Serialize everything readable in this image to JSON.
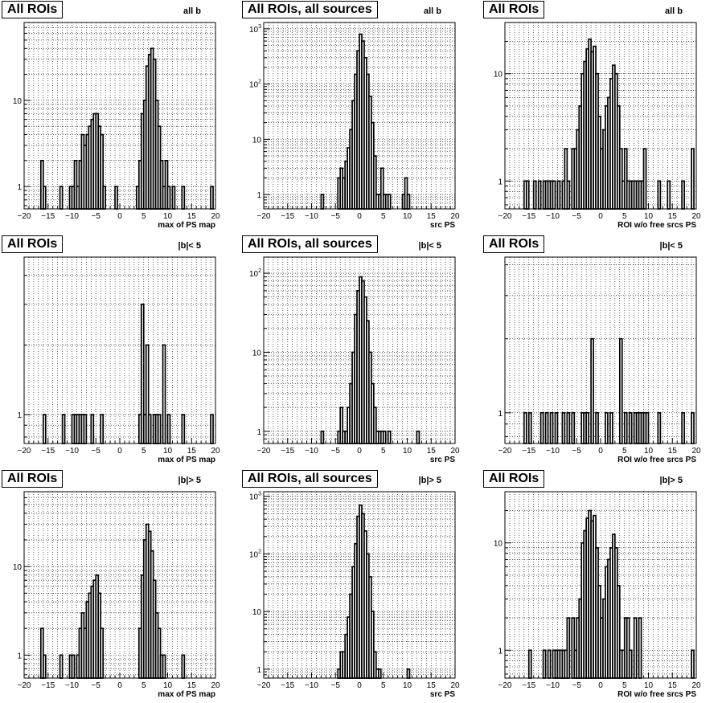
{
  "chart_data": [
    {
      "type": "bar",
      "title": "All ROIs",
      "subtitle": "all b",
      "xlabel": "max of PS map",
      "xlim": [
        -20,
        20
      ],
      "y_scale": "log",
      "ylim": [
        0.55,
        80
      ],
      "yticks": [
        1,
        10
      ],
      "xticks": [
        -20,
        -15,
        -10,
        -5,
        0,
        5,
        10,
        15,
        20
      ],
      "grid": true,
      "legend": "none",
      "points": [
        [
          -16,
          1
        ],
        [
          -16.5,
          2
        ],
        [
          -12.5,
          1
        ],
        [
          -10.5,
          1
        ],
        [
          -10,
          1
        ],
        [
          -9.5,
          2
        ],
        [
          -9,
          1
        ],
        [
          -8.5,
          2
        ],
        [
          -8,
          4
        ],
        [
          -7.5,
          3
        ],
        [
          -7,
          4
        ],
        [
          -6.5,
          5
        ],
        [
          -6,
          6
        ],
        [
          -5.5,
          7
        ],
        [
          -5,
          7
        ],
        [
          -4.5,
          5
        ],
        [
          -4,
          4
        ],
        [
          -3.5,
          1
        ],
        [
          -1,
          1
        ],
        [
          3.5,
          1
        ],
        [
          4,
          2
        ],
        [
          4.5,
          7
        ],
        [
          5,
          10
        ],
        [
          5.5,
          25
        ],
        [
          6,
          34
        ],
        [
          6.5,
          40
        ],
        [
          7,
          30
        ],
        [
          7.5,
          10
        ],
        [
          8,
          5
        ],
        [
          8.5,
          2
        ],
        [
          9,
          1
        ],
        [
          9.5,
          2
        ],
        [
          10,
          1
        ],
        [
          11,
          1
        ],
        [
          13,
          1
        ],
        [
          19,
          1
        ]
      ]
    },
    {
      "type": "bar",
      "title": "All ROIs, all sources",
      "subtitle": "all b",
      "xlabel": "src PS",
      "xlim": [
        -20,
        20
      ],
      "y_scale": "log",
      "ylim": [
        0.55,
        1300
      ],
      "yticks": [
        1,
        10,
        100,
        1000
      ],
      "xticks": [
        -20,
        -15,
        -10,
        -5,
        0,
        5,
        10,
        15,
        20
      ],
      "grid": true,
      "legend": "none",
      "points": [
        [
          -8,
          1
        ],
        [
          -4.5,
          2
        ],
        [
          -4,
          3
        ],
        [
          -3.5,
          2
        ],
        [
          -3,
          4
        ],
        [
          -2.5,
          7
        ],
        [
          -2,
          15
        ],
        [
          -1.5,
          50
        ],
        [
          -1,
          150
        ],
        [
          -0.5,
          400
        ],
        [
          0,
          800
        ],
        [
          0.5,
          600
        ],
        [
          1,
          300
        ],
        [
          1.5,
          150
        ],
        [
          2,
          60
        ],
        [
          2.5,
          20
        ],
        [
          3,
          5
        ],
        [
          3.5,
          1
        ],
        [
          4,
          1
        ],
        [
          4.5,
          3
        ],
        [
          5,
          1
        ],
        [
          5.5,
          1
        ],
        [
          6,
          1
        ],
        [
          9,
          1
        ],
        [
          9.5,
          2
        ],
        [
          10,
          1
        ]
      ]
    },
    {
      "type": "bar",
      "title": "All ROIs",
      "subtitle": "all b",
      "xlabel": "ROI w/o free srcs PS",
      "xlim": [
        -20,
        20
      ],
      "y_scale": "log",
      "ylim": [
        0.55,
        30
      ],
      "yticks": [
        1,
        10
      ],
      "xticks": [
        -20,
        -15,
        -10,
        -5,
        0,
        5,
        10,
        15,
        20
      ],
      "grid": true,
      "legend": "none",
      "points": [
        [
          -16,
          1
        ],
        [
          -15.5,
          1
        ],
        [
          -14,
          1
        ],
        [
          -13,
          1
        ],
        [
          -12,
          1
        ],
        [
          -11.5,
          1
        ],
        [
          -11,
          1
        ],
        [
          -10.5,
          1
        ],
        [
          -10,
          1
        ],
        [
          -9,
          1
        ],
        [
          -8,
          1
        ],
        [
          -7.5,
          2
        ],
        [
          -7,
          1
        ],
        [
          -6,
          2
        ],
        [
          -5.5,
          2
        ],
        [
          -5,
          3
        ],
        [
          -4.5,
          5
        ],
        [
          -4,
          10
        ],
        [
          -3.5,
          13
        ],
        [
          -3,
          17
        ],
        [
          -2.5,
          21
        ],
        [
          -2,
          16
        ],
        [
          -1.5,
          18
        ],
        [
          -1,
          10
        ],
        [
          -0.5,
          4
        ],
        [
          0,
          2
        ],
        [
          0.5,
          3
        ],
        [
          1,
          5
        ],
        [
          1.5,
          6
        ],
        [
          2,
          9
        ],
        [
          2.5,
          12
        ],
        [
          3,
          10
        ],
        [
          3.5,
          5
        ],
        [
          4,
          2
        ],
        [
          4.5,
          1
        ],
        [
          5,
          2
        ],
        [
          5.5,
          1
        ],
        [
          6,
          1
        ],
        [
          6.5,
          1
        ],
        [
          7,
          1
        ],
        [
          7.5,
          1
        ],
        [
          8,
          1
        ],
        [
          8.5,
          1
        ],
        [
          9,
          2
        ],
        [
          12,
          1
        ],
        [
          14,
          1
        ],
        [
          17,
          1
        ],
        [
          19,
          2
        ]
      ]
    },
    {
      "type": "bar",
      "title": "All ROIs",
      "subtitle": "|b|< 5",
      "xlabel": "max of PS map",
      "xlim": [
        -20,
        20
      ],
      "y_scale": "log",
      "ylim": [
        0.75,
        4.8
      ],
      "yticks": [
        1
      ],
      "xticks": [
        -20,
        -15,
        -10,
        -5,
        0,
        5,
        10,
        15,
        20
      ],
      "grid": true,
      "legend": "none",
      "points": [
        [
          -16,
          1
        ],
        [
          -12,
          1
        ],
        [
          -10,
          1
        ],
        [
          -9.5,
          1
        ],
        [
          -9,
          1
        ],
        [
          -8.5,
          1
        ],
        [
          -8,
          1
        ],
        [
          -7.5,
          1
        ],
        [
          -6,
          1
        ],
        [
          -4,
          1
        ],
        [
          4,
          1
        ],
        [
          4.5,
          3
        ],
        [
          5,
          1
        ],
        [
          5.5,
          2
        ],
        [
          6,
          1
        ],
        [
          7,
          1
        ],
        [
          7.5,
          1
        ],
        [
          8,
          1
        ],
        [
          9,
          2
        ],
        [
          10,
          1
        ],
        [
          13,
          1
        ],
        [
          19,
          1
        ]
      ]
    },
    {
      "type": "bar",
      "title": "All ROIs, all sources",
      "subtitle": "|b|< 5",
      "xlabel": "src PS",
      "xlim": [
        -20,
        20
      ],
      "y_scale": "log",
      "ylim": [
        0.7,
        160
      ],
      "yticks": [
        1,
        10,
        100
      ],
      "xticks": [
        -20,
        -15,
        -10,
        -5,
        0,
        5,
        10,
        15,
        20
      ],
      "grid": true,
      "legend": "none",
      "points": [
        [
          -8,
          1
        ],
        [
          -4.5,
          1
        ],
        [
          -4,
          2
        ],
        [
          -3.5,
          1
        ],
        [
          -3,
          1
        ],
        [
          -2.5,
          2
        ],
        [
          -2,
          4
        ],
        [
          -1.5,
          10
        ],
        [
          -1,
          30
        ],
        [
          -0.5,
          60
        ],
        [
          0,
          90
        ],
        [
          0.5,
          80
        ],
        [
          1,
          50
        ],
        [
          1.5,
          25
        ],
        [
          2,
          10
        ],
        [
          2.5,
          4
        ],
        [
          3,
          2
        ],
        [
          3.5,
          1
        ],
        [
          4,
          1
        ],
        [
          4.5,
          1
        ],
        [
          5,
          1
        ],
        [
          6,
          1
        ],
        [
          12,
          1
        ]
      ]
    },
    {
      "type": "bar",
      "title": "All ROIs",
      "subtitle": "|b|< 5",
      "xlabel": "ROI w/o free srcs PS",
      "xlim": [
        -20,
        20
      ],
      "y_scale": "log",
      "ylim": [
        0.75,
        4.3
      ],
      "yticks": [
        1
      ],
      "xticks": [
        -20,
        -15,
        -10,
        -5,
        0,
        5,
        10,
        15,
        20
      ],
      "grid": true,
      "legend": "none",
      "points": [
        [
          -16,
          1
        ],
        [
          -15,
          1
        ],
        [
          -12.5,
          1
        ],
        [
          -11.5,
          1
        ],
        [
          -10.5,
          1
        ],
        [
          -9.5,
          1
        ],
        [
          -8,
          1
        ],
        [
          -7,
          1
        ],
        [
          -6,
          1
        ],
        [
          -4,
          1
        ],
        [
          -3.5,
          1
        ],
        [
          -3,
          1
        ],
        [
          -2,
          2
        ],
        [
          -1,
          1
        ],
        [
          1,
          1
        ],
        [
          2,
          1
        ],
        [
          4,
          2
        ],
        [
          5,
          1
        ],
        [
          6,
          1
        ],
        [
          7,
          1
        ],
        [
          7.5,
          1
        ],
        [
          8,
          1
        ],
        [
          8.5,
          1
        ],
        [
          9,
          1
        ],
        [
          9.5,
          1
        ],
        [
          12,
          1
        ],
        [
          17,
          1
        ],
        [
          19,
          1
        ]
      ]
    },
    {
      "type": "bar",
      "title": "All ROIs",
      "subtitle": "|b|> 5",
      "xlabel": "max of PS map",
      "xlim": [
        -20,
        20
      ],
      "y_scale": "log",
      "ylim": [
        0.55,
        70
      ],
      "yticks": [
        1,
        10
      ],
      "xticks": [
        -20,
        -15,
        -10,
        -5,
        0,
        5,
        10,
        15,
        20
      ],
      "grid": true,
      "legend": "none",
      "points": [
        [
          -16,
          1
        ],
        [
          -16.5,
          2
        ],
        [
          -12.5,
          1
        ],
        [
          -10.5,
          1
        ],
        [
          -10,
          1
        ],
        [
          -9,
          1
        ],
        [
          -8.5,
          2
        ],
        [
          -8,
          3
        ],
        [
          -7.5,
          2
        ],
        [
          -7,
          4
        ],
        [
          -6.5,
          5
        ],
        [
          -6,
          6
        ],
        [
          -5.5,
          7
        ],
        [
          -5,
          8
        ],
        [
          -4.5,
          5
        ],
        [
          -4,
          2
        ],
        [
          4,
          2
        ],
        [
          4.5,
          8
        ],
        [
          5,
          20
        ],
        [
          5.5,
          30
        ],
        [
          6,
          25
        ],
        [
          6.5,
          15
        ],
        [
          7,
          7
        ],
        [
          7.5,
          3
        ],
        [
          8,
          2
        ],
        [
          8.5,
          1
        ],
        [
          9,
          1
        ],
        [
          13,
          1
        ]
      ]
    },
    {
      "type": "bar",
      "title": "All ROIs, all sources",
      "subtitle": "|b|> 5",
      "xlabel": "src PS",
      "xlim": [
        -20,
        20
      ],
      "y_scale": "log",
      "ylim": [
        0.7,
        1200
      ],
      "yticks": [
        1,
        10,
        100,
        1000
      ],
      "xticks": [
        -20,
        -15,
        -10,
        -5,
        0,
        5,
        10,
        15,
        20
      ],
      "grid": true,
      "legend": "none",
      "points": [
        [
          -4.5,
          1
        ],
        [
          -4,
          2
        ],
        [
          -3.5,
          2
        ],
        [
          -3,
          4
        ],
        [
          -2.5,
          8
        ],
        [
          -2,
          20
        ],
        [
          -1.5,
          60
        ],
        [
          -1,
          150
        ],
        [
          -0.5,
          450
        ],
        [
          0,
          700
        ],
        [
          0.5,
          500
        ],
        [
          1,
          250
        ],
        [
          1.5,
          100
        ],
        [
          2,
          40
        ],
        [
          2.5,
          10
        ],
        [
          3,
          2
        ],
        [
          3.5,
          1
        ],
        [
          4,
          1
        ],
        [
          10,
          1
        ]
      ]
    },
    {
      "type": "bar",
      "title": "All ROIs",
      "subtitle": "|b|> 5",
      "xlabel": "ROI w/o free srcs PS",
      "xlim": [
        -20,
        20
      ],
      "y_scale": "log",
      "ylim": [
        0.55,
        30
      ],
      "yticks": [
        1,
        10
      ],
      "xticks": [
        -20,
        -15,
        -10,
        -5,
        0,
        5,
        10,
        15,
        20
      ],
      "grid": true,
      "legend": "none",
      "points": [
        [
          -15,
          1
        ],
        [
          -12,
          1
        ],
        [
          -11,
          1
        ],
        [
          -10,
          1
        ],
        [
          -9.5,
          1
        ],
        [
          -9,
          1
        ],
        [
          -8.5,
          1
        ],
        [
          -8,
          1
        ],
        [
          -7.5,
          1
        ],
        [
          -7,
          2
        ],
        [
          -6,
          2
        ],
        [
          -5.5,
          1
        ],
        [
          -5,
          2
        ],
        [
          -4.5,
          3
        ],
        [
          -4,
          10
        ],
        [
          -3.5,
          13
        ],
        [
          -3,
          17
        ],
        [
          -2.5,
          20
        ],
        [
          -2,
          16
        ],
        [
          -1.5,
          18
        ],
        [
          -1,
          9
        ],
        [
          -0.5,
          4
        ],
        [
          0,
          2
        ],
        [
          0.5,
          3
        ],
        [
          1,
          6
        ],
        [
          1.5,
          7
        ],
        [
          2,
          9
        ],
        [
          2.5,
          12
        ],
        [
          3,
          9
        ],
        [
          3.5,
          4
        ],
        [
          4,
          1
        ],
        [
          4.5,
          1
        ],
        [
          5,
          2
        ],
        [
          5.5,
          2
        ],
        [
          6,
          1
        ],
        [
          7,
          2
        ],
        [
          8,
          2
        ],
        [
          19,
          1
        ]
      ]
    }
  ]
}
